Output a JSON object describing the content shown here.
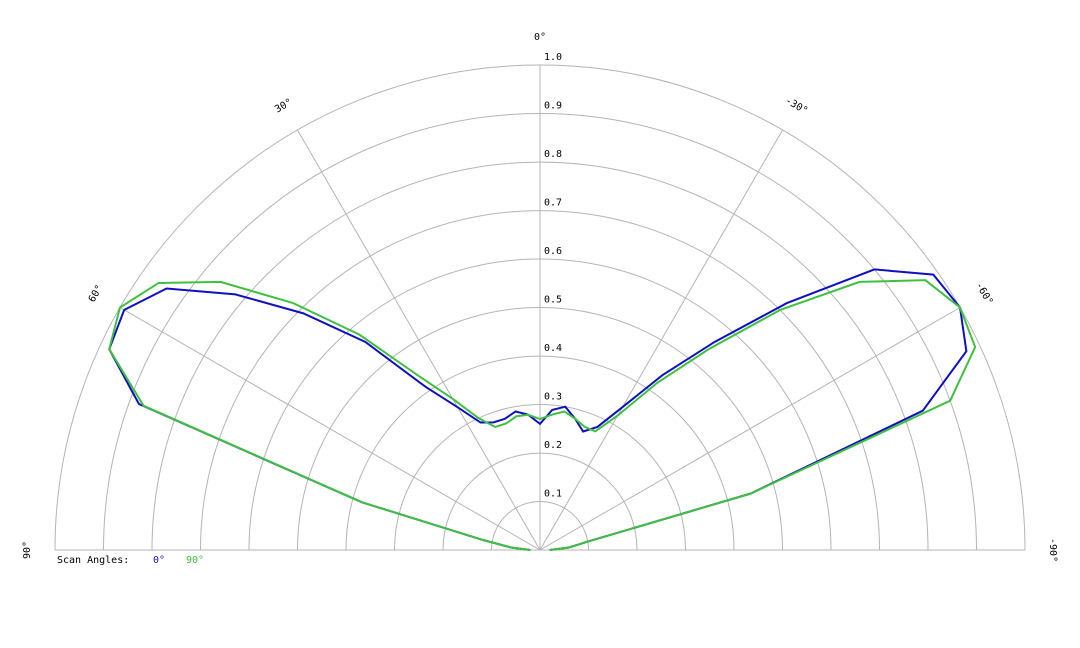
{
  "chart_data": {
    "type": "polar",
    "theta": [
      -90,
      -85,
      -80,
      -75,
      -70,
      -65,
      -60,
      -55,
      -50,
      -45,
      -40,
      -35,
      -30,
      -25,
      -20,
      -15,
      -10,
      -5,
      0,
      5,
      10,
      15,
      20,
      25,
      30,
      35,
      40,
      45,
      50,
      55,
      60,
      65,
      70,
      75,
      80,
      85,
      90
    ],
    "series": [
      {
        "name": "0°",
        "color": "#1010c0",
        "values": [
          0.02,
          0.06,
          0.1,
          0.45,
          0.84,
          0.97,
          1.0,
          0.99,
          0.9,
          0.72,
          0.56,
          0.44,
          0.34,
          0.28,
          0.26,
          0.28,
          0.3,
          0.29,
          0.26,
          0.28,
          0.29,
          0.28,
          0.28,
          0.29,
          0.34,
          0.41,
          0.56,
          0.69,
          0.82,
          0.94,
          0.99,
          0.98,
          0.88,
          0.38,
          0.12,
          0.06,
          0.02
        ]
      },
      {
        "name": "90°",
        "color": "#40c040",
        "values": [
          0.02,
          0.06,
          0.1,
          0.45,
          0.9,
          0.99,
          1.0,
          0.97,
          0.86,
          0.7,
          0.54,
          0.42,
          0.32,
          0.27,
          0.27,
          0.28,
          0.29,
          0.28,
          0.27,
          0.28,
          0.28,
          0.27,
          0.27,
          0.3,
          0.36,
          0.44,
          0.58,
          0.72,
          0.86,
          0.96,
          1.0,
          0.98,
          0.87,
          0.38,
          0.12,
          0.06,
          0.02
        ]
      }
    ],
    "legend_title": "Scan Angles:",
    "ylim": [
      0,
      1
    ],
    "yticks": [
      0.1,
      0.2,
      0.3,
      0.4,
      0.5,
      0.6,
      0.7,
      0.8,
      0.9,
      {
        "value": 1,
        "label": "1.0"
      }
    ],
    "xlim": [
      -90,
      90
    ],
    "xticks": [
      {
        "value": 90,
        "label": "90°"
      },
      {
        "value": 60,
        "label": "60°"
      },
      {
        "value": 30,
        "label": "30°"
      },
      {
        "value": 0,
        "label": "0°"
      },
      {
        "value": -30,
        "label": "-30°"
      },
      {
        "value": -60,
        "label": "-60°"
      },
      {
        "value": -90,
        "label": "-90°"
      }
    ],
    "grid": true
  }
}
